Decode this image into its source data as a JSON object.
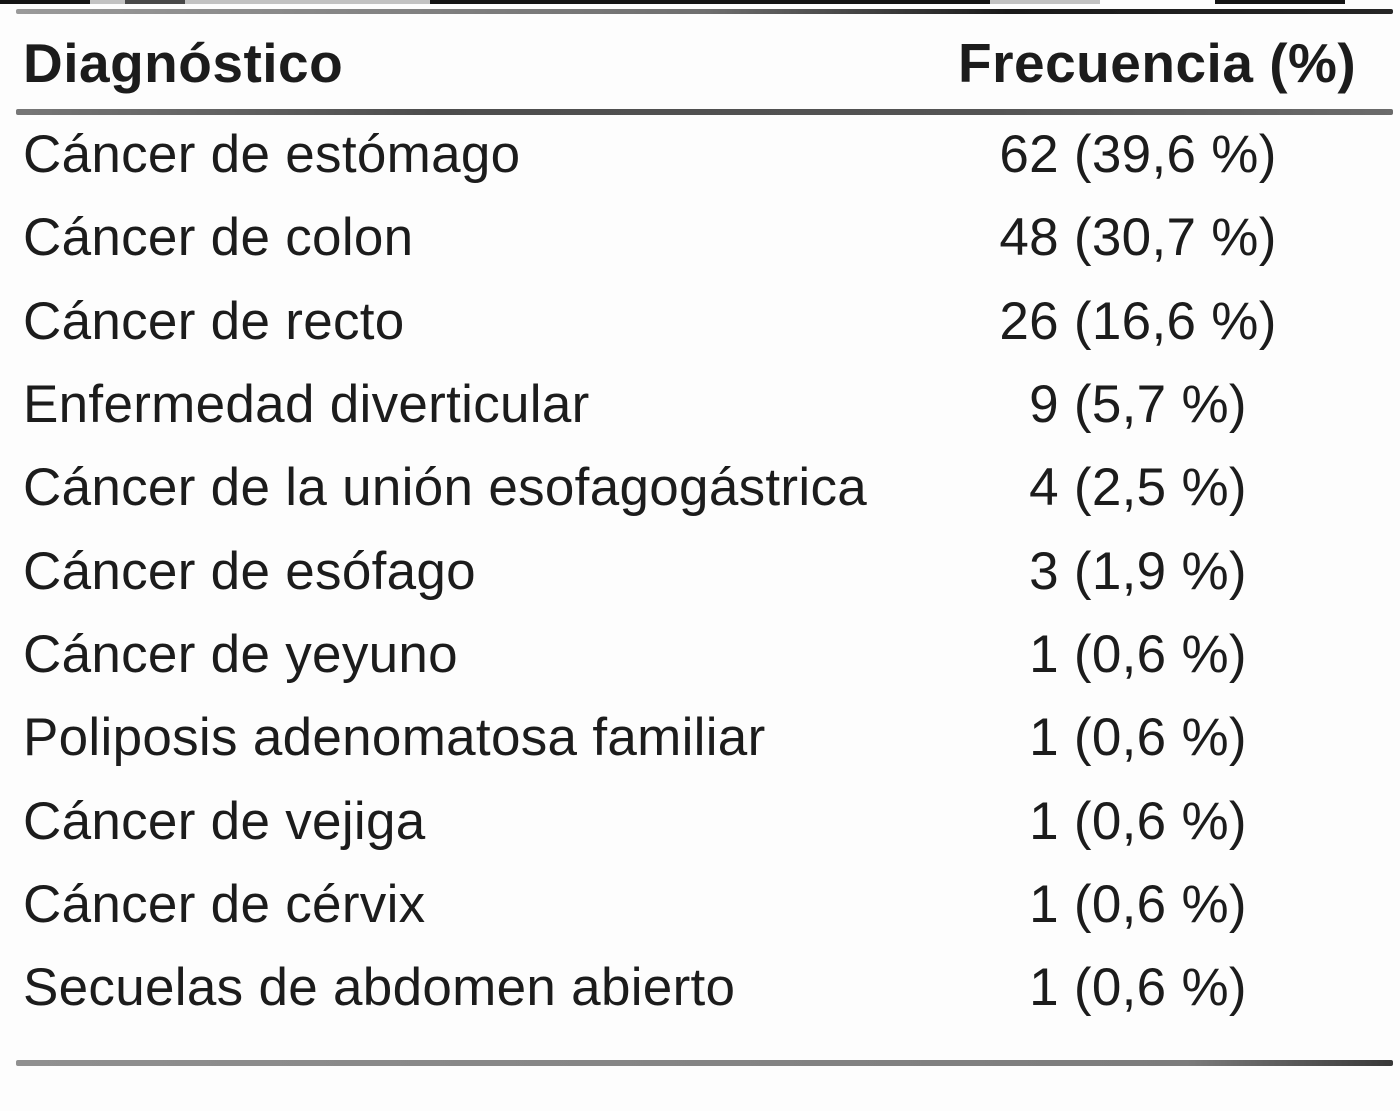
{
  "page": {
    "background": "#fdfdfd",
    "text_color": "#1c1c1c",
    "rule_color_dark": "#4d4d4d",
    "rule_color_gray": "#7c7c7c"
  },
  "table": {
    "headers": {
      "diagnosis": "Diagnóstico",
      "frequency": "Frecuencia (%)"
    },
    "rows": [
      {
        "diagnosis": "Cáncer de estómago",
        "frequency": "62 (39,6 %)"
      },
      {
        "diagnosis": "Cáncer de colon",
        "frequency": "48 (30,7 %)"
      },
      {
        "diagnosis": "Cáncer de recto",
        "frequency": "26 (16,6 %)"
      },
      {
        "diagnosis": "Enfermedad diverticular",
        "frequency": "9 (5,7 %)"
      },
      {
        "diagnosis": "Cáncer de la unión esofagogástrica",
        "frequency": "4 (2,5 %)"
      },
      {
        "diagnosis": "Cáncer de esófago",
        "frequency": "3 (1,9 %)"
      },
      {
        "diagnosis": "Cáncer de yeyuno",
        "frequency": "1 (0,6 %)"
      },
      {
        "diagnosis": "Poliposis adenomatosa familiar",
        "frequency": "1 (0,6 %)"
      },
      {
        "diagnosis": "Cáncer de vejiga",
        "frequency": "1 (0,6 %)"
      },
      {
        "diagnosis": "Cáncer de cérvix",
        "frequency": "1 (0,6 %)"
      },
      {
        "diagnosis": "Secuelas de abdomen abierto",
        "frequency": "1 (0,6 %)"
      }
    ]
  },
  "chart_data": {
    "type": "table",
    "columns": [
      "Diagnóstico",
      "Frecuencia (%)"
    ],
    "categories": [
      "Cáncer de estómago",
      "Cáncer de colon",
      "Cáncer de recto",
      "Enfermedad diverticular",
      "Cáncer de la unión esofagogástrica",
      "Cáncer de esófago",
      "Cáncer de yeyuno",
      "Poliposis adenomatosa familiar",
      "Cáncer de vejiga",
      "Cáncer de cérvix",
      "Secuelas de abdomen abierto"
    ],
    "counts": [
      62,
      48,
      26,
      9,
      4,
      3,
      1,
      1,
      1,
      1,
      1
    ],
    "percents": [
      39.6,
      30.7,
      16.6,
      5.7,
      2.5,
      1.9,
      0.6,
      0.6,
      0.6,
      0.6,
      0.6
    ]
  }
}
